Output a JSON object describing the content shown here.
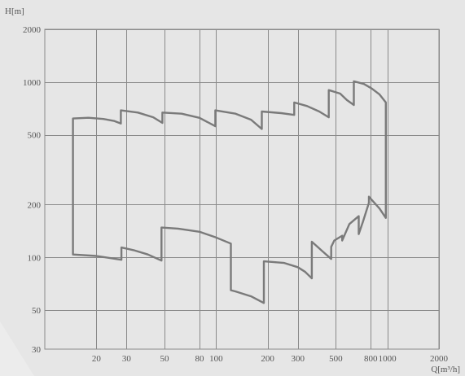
{
  "chart_data": {
    "type": "line",
    "title": "",
    "xlabel": "Q[m³/h]",
    "ylabel": "H[m]",
    "xscale": "log",
    "yscale": "log",
    "xlim": [
      10,
      2000
    ],
    "ylim": [
      30,
      2000
    ],
    "grid": true,
    "x_grid": [
      20,
      30,
      50,
      80,
      100,
      200,
      300,
      500,
      800,
      1000,
      2000
    ],
    "y_grid": [
      50,
      100,
      200,
      500,
      1000,
      2000
    ],
    "x_ticks": [
      {
        "value": 20,
        "label": "20"
      },
      {
        "value": 30,
        "label": "30"
      },
      {
        "value": 50,
        "label": "50"
      },
      {
        "value": 80,
        "label": "80"
      },
      {
        "value": 100,
        "label": "100"
      },
      {
        "value": 200,
        "label": "200"
      },
      {
        "value": 300,
        "label": "300"
      },
      {
        "value": 500,
        "label": "500"
      },
      {
        "value": 800,
        "label": "800"
      },
      {
        "value": 1000,
        "label": "1000"
      },
      {
        "value": 2000,
        "label": "2000"
      }
    ],
    "y_ticks": [
      {
        "value": 30,
        "label": "30"
      },
      {
        "value": 50,
        "label": "50"
      },
      {
        "value": 100,
        "label": "100"
      },
      {
        "value": 200,
        "label": "200"
      },
      {
        "value": 500,
        "label": "500"
      },
      {
        "value": 1000,
        "label": "1000"
      },
      {
        "value": 2000,
        "label": "2000"
      }
    ],
    "series": [
      {
        "color": "#7a7a7a",
        "points": [
          [
            14.6,
            104
          ],
          [
            14.6,
            620
          ],
          [
            18,
            626
          ],
          [
            22,
            616
          ],
          [
            25.5,
            600
          ],
          [
            27.8,
            580
          ],
          [
            27.8,
            690
          ],
          [
            35,
            670
          ],
          [
            43,
            630
          ],
          [
            48.6,
            585
          ],
          [
            48.6,
            670
          ],
          [
            63,
            660
          ],
          [
            80,
            625
          ],
          [
            99,
            560
          ],
          [
            99,
            690
          ],
          [
            130,
            660
          ],
          [
            160,
            610
          ],
          [
            185,
            540
          ],
          [
            185,
            680
          ],
          [
            240,
            665
          ],
          [
            286,
            650
          ],
          [
            286,
            765
          ],
          [
            340,
            730
          ],
          [
            400,
            680
          ],
          [
            455,
            630
          ],
          [
            455,
            900
          ],
          [
            530,
            860
          ],
          [
            580,
            790
          ],
          [
            637,
            740
          ],
          [
            637,
            1010
          ],
          [
            730,
            975
          ],
          [
            810,
            920
          ],
          [
            900,
            850
          ],
          [
            980,
            765
          ],
          [
            980,
            168
          ],
          [
            900,
            190
          ],
          [
            780,
            222
          ],
          [
            780,
            205
          ],
          [
            720,
            160
          ],
          [
            680,
            136
          ],
          [
            680,
            172
          ],
          [
            600,
            155
          ],
          [
            545,
            125
          ],
          [
            545,
            133
          ],
          [
            490,
            125
          ],
          [
            470,
            115
          ],
          [
            470,
            98
          ],
          [
            420,
            108
          ],
          [
            362,
            123
          ],
          [
            362,
            76
          ],
          [
            330,
            83
          ],
          [
            300,
            88
          ],
          [
            250,
            93
          ],
          [
            190,
            95
          ],
          [
            190,
            55
          ],
          [
            160,
            60
          ],
          [
            130,
            64
          ],
          [
            122,
            65
          ],
          [
            122,
            120
          ],
          [
            100,
            130
          ],
          [
            80,
            140
          ],
          [
            60,
            146
          ],
          [
            48,
            148
          ],
          [
            48,
            96
          ],
          [
            40,
            104
          ],
          [
            33,
            110
          ],
          [
            28,
            114
          ],
          [
            28,
            97
          ],
          [
            20,
            102
          ],
          [
            14.6,
            104
          ]
        ]
      }
    ]
  }
}
